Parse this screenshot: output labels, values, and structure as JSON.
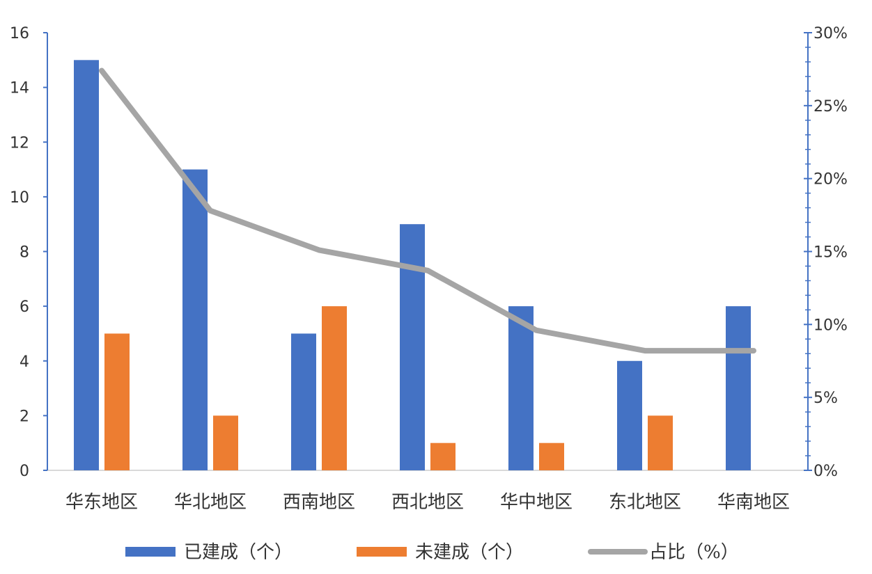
{
  "chart_data": {
    "type": "bar",
    "categories": [
      "华东地区",
      "华北地区",
      "西南地区",
      "西北地区",
      "华中地区",
      "东北地区",
      "华南地区"
    ],
    "series": [
      {
        "name": "已建成（个）",
        "type": "bar",
        "axis": "left",
        "color": "#4472C4",
        "values": [
          15,
          11,
          5,
          9,
          6,
          4,
          6
        ]
      },
      {
        "name": "未建成（个）",
        "type": "bar",
        "axis": "left",
        "color": "#ED7D31",
        "values": [
          5,
          2,
          6,
          1,
          1,
          2,
          0
        ]
      },
      {
        "name": "占比（%）",
        "type": "line",
        "axis": "right",
        "color": "#A5A5A5",
        "values": [
          27.4,
          17.8,
          15.1,
          13.7,
          9.6,
          8.2,
          8.2
        ]
      }
    ],
    "y_left": {
      "min": 0,
      "max": 16,
      "step": 2,
      "ticks": [
        "0",
        "2",
        "4",
        "6",
        "8",
        "10",
        "12",
        "14",
        "16"
      ]
    },
    "y_right": {
      "min": 0,
      "max": 30,
      "step": 5,
      "ticks": [
        "0%",
        "5%",
        "10%",
        "15%",
        "20%",
        "25%",
        "30%"
      ]
    },
    "grid": false,
    "legend_position": "bottom",
    "axis_color": "#4472C4"
  }
}
